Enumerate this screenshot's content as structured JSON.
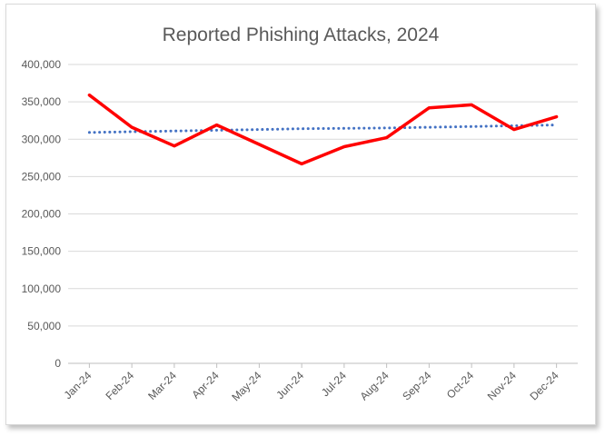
{
  "chart_data": {
    "type": "line",
    "title": "Reported Phishing Attacks, 2024",
    "categories": [
      "Jan-24",
      "Feb-24",
      "Mar-24",
      "Apr-24",
      "May-24",
      "Jun-24",
      "Jul-24",
      "Aug-24",
      "Sep-24",
      "Oct-24",
      "Nov-24",
      "Dec-24"
    ],
    "series": [
      {
        "values": [
          359000,
          316000,
          291000,
          319000,
          293000,
          267000,
          290000,
          302000,
          342000,
          346000,
          313000,
          330000
        ],
        "color": "#ff0000",
        "style": "solid"
      },
      {
        "trendline": true,
        "values": [
          309000,
          310000,
          311000,
          312000,
          313000,
          314000,
          314500,
          315000,
          316000,
          317000,
          318000,
          319000
        ],
        "color": "#4472c4",
        "style": "dotted"
      }
    ],
    "yticks": [
      "0",
      "50,000",
      "100,000",
      "150,000",
      "200,000",
      "250,000",
      "300,000",
      "350,000",
      "400,000"
    ],
    "ylim": [
      0,
      400000
    ],
    "grid": true,
    "legend": "none"
  }
}
